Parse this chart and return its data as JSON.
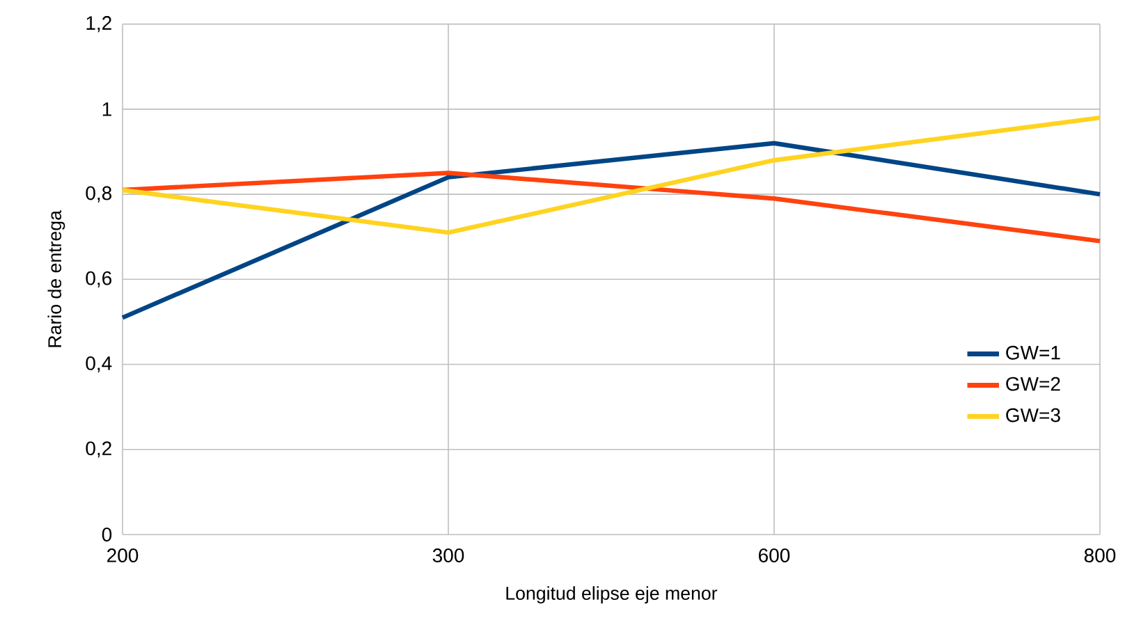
{
  "chart_data": {
    "type": "line",
    "xlabel": "Longitud elipse eje menor",
    "ylabel": "Rario de entrega",
    "categories": [
      "200",
      "300",
      "600",
      "800"
    ],
    "series": [
      {
        "name": "GW=1",
        "color": "#004586",
        "values": [
          0.51,
          0.84,
          0.92,
          0.8
        ]
      },
      {
        "name": "GW=2",
        "color": "#ff420e",
        "values": [
          0.81,
          0.85,
          0.79,
          0.69
        ]
      },
      {
        "name": "GW=3",
        "color": "#ffd320",
        "values": [
          0.81,
          0.71,
          0.88,
          0.98
        ]
      }
    ],
    "ylim": [
      0,
      1.2
    ],
    "yticks": [
      0,
      {
        "value": 0.2,
        "label": "0,2"
      },
      {
        "value": 0.4,
        "label": "0,4"
      },
      {
        "value": 0.6,
        "label": "0,6"
      },
      {
        "value": 0.8,
        "label": "0,8"
      },
      1,
      {
        "value": 1.2,
        "label": "1,2"
      }
    ],
    "grid": true,
    "legend": "bottom right",
    "marker": "none",
    "line_style": "solid"
  }
}
